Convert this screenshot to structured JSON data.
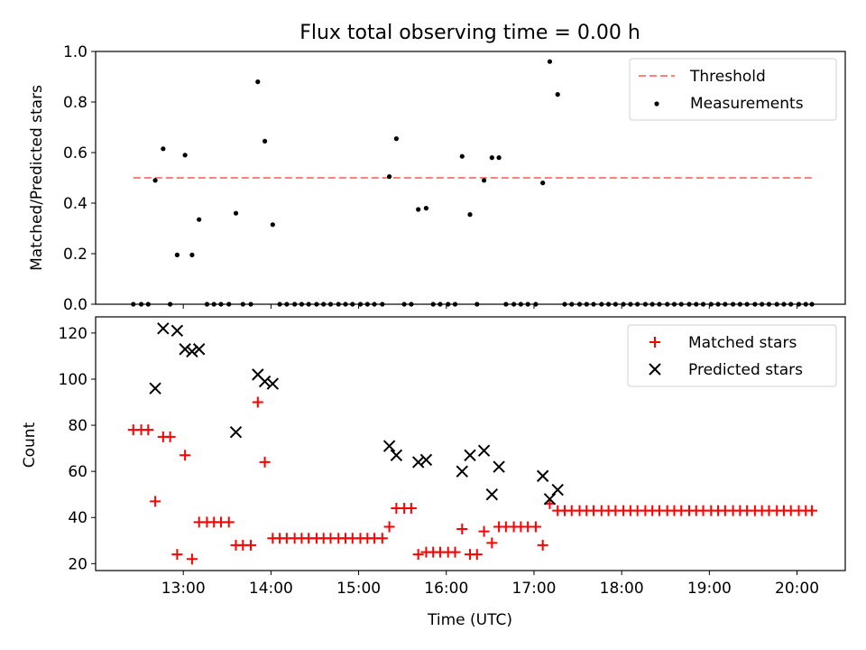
{
  "title": "Flux total observing time = 0.00 h",
  "chart_data": [
    {
      "type": "scatter",
      "ylabel": "Matched/Predicted stars",
      "ylim": [
        0,
        1.0
      ],
      "yticks": [
        "0.0",
        "0.2",
        "0.4",
        "0.6",
        "0.8",
        "1.0"
      ],
      "threshold": {
        "value": 0.5,
        "x": [
          12.43,
          20.17
        ],
        "name": "Threshold",
        "color": "#ff7f7f"
      },
      "legend": {
        "position": "upper right",
        "entries": [
          "Threshold",
          "Measurements"
        ]
      },
      "series": [
        {
          "name": "Measurements",
          "color": "#000000",
          "points": [
            [
              12.43,
              0.0
            ],
            [
              12.52,
              0.0
            ],
            [
              12.6,
              0.0
            ],
            [
              12.68,
              0.49
            ],
            [
              12.77,
              0.615
            ],
            [
              12.85,
              0.0
            ],
            [
              12.93,
              0.195
            ],
            [
              13.02,
              0.59
            ],
            [
              13.1,
              0.195
            ],
            [
              13.18,
              0.335
            ],
            [
              13.27,
              0.0
            ],
            [
              13.35,
              0.0
            ],
            [
              13.43,
              0.0
            ],
            [
              13.52,
              0.0
            ],
            [
              13.6,
              0.36
            ],
            [
              13.68,
              0.0
            ],
            [
              13.77,
              0.0
            ],
            [
              13.85,
              0.88
            ],
            [
              13.93,
              0.645
            ],
            [
              14.02,
              0.315
            ],
            [
              14.1,
              0.0
            ],
            [
              14.18,
              0.0
            ],
            [
              14.27,
              0.0
            ],
            [
              14.35,
              0.0
            ],
            [
              14.43,
              0.0
            ],
            [
              14.52,
              0.0
            ],
            [
              14.6,
              0.0
            ],
            [
              14.68,
              0.0
            ],
            [
              14.77,
              0.0
            ],
            [
              14.85,
              0.0
            ],
            [
              14.93,
              0.0
            ],
            [
              15.02,
              0.0
            ],
            [
              15.1,
              0.0
            ],
            [
              15.18,
              0.0
            ],
            [
              15.27,
              0.0
            ],
            [
              15.35,
              0.505
            ],
            [
              15.43,
              0.655
            ],
            [
              15.52,
              0.0
            ],
            [
              15.6,
              0.0
            ],
            [
              15.68,
              0.375
            ],
            [
              15.77,
              0.38
            ],
            [
              15.85,
              0.0
            ],
            [
              15.93,
              0.0
            ],
            [
              16.02,
              0.0
            ],
            [
              16.1,
              0.0
            ],
            [
              16.18,
              0.585
            ],
            [
              16.27,
              0.355
            ],
            [
              16.35,
              0.0
            ],
            [
              16.43,
              0.49
            ],
            [
              16.52,
              0.58
            ],
            [
              16.6,
              0.58
            ],
            [
              16.68,
              0.0
            ],
            [
              16.77,
              0.0
            ],
            [
              16.85,
              0.0
            ],
            [
              16.93,
              0.0
            ],
            [
              17.02,
              0.0
            ],
            [
              17.1,
              0.48
            ],
            [
              17.18,
              0.96
            ],
            [
              17.27,
              0.83
            ],
            [
              17.35,
              0.0
            ],
            [
              17.43,
              0.0
            ],
            [
              17.52,
              0.0
            ],
            [
              17.6,
              0.0
            ],
            [
              17.68,
              0.0
            ],
            [
              17.77,
              0.0
            ],
            [
              17.85,
              0.0
            ],
            [
              17.93,
              0.0
            ],
            [
              18.02,
              0.0
            ],
            [
              18.1,
              0.0
            ],
            [
              18.18,
              0.0
            ],
            [
              18.27,
              0.0
            ],
            [
              18.35,
              0.0
            ],
            [
              18.43,
              0.0
            ],
            [
              18.52,
              0.0
            ],
            [
              18.6,
              0.0
            ],
            [
              18.68,
              0.0
            ],
            [
              18.77,
              0.0
            ],
            [
              18.85,
              0.0
            ],
            [
              18.93,
              0.0
            ],
            [
              19.02,
              0.0
            ],
            [
              19.1,
              0.0
            ],
            [
              19.18,
              0.0
            ],
            [
              19.27,
              0.0
            ],
            [
              19.35,
              0.0
            ],
            [
              19.43,
              0.0
            ],
            [
              19.52,
              0.0
            ],
            [
              19.6,
              0.0
            ],
            [
              19.68,
              0.0
            ],
            [
              19.77,
              0.0
            ],
            [
              19.85,
              0.0
            ],
            [
              19.93,
              0.0
            ],
            [
              20.02,
              0.0
            ],
            [
              20.1,
              0.0
            ],
            [
              20.17,
              0.0
            ]
          ]
        }
      ]
    },
    {
      "type": "scatter",
      "xlabel": "Time (UTC)",
      "ylabel": "Count",
      "ylim": [
        17,
        127
      ],
      "yticks": [
        "20",
        "40",
        "60",
        "80",
        "100",
        "120"
      ],
      "xlim": [
        12.0,
        20.55
      ],
      "xticks": [
        "13:00",
        "14:00",
        "15:00",
        "16:00",
        "17:00",
        "18:00",
        "19:00",
        "20:00"
      ],
      "legend": {
        "position": "upper right",
        "entries": [
          "Matched stars",
          "Predicted stars"
        ]
      },
      "series": [
        {
          "name": "Matched stars",
          "marker": "+",
          "color": "#ff0000",
          "points": [
            [
              12.43,
              78
            ],
            [
              12.52,
              78
            ],
            [
              12.6,
              78
            ],
            [
              12.68,
              47
            ],
            [
              12.77,
              75
            ],
            [
              12.85,
              75
            ],
            [
              12.93,
              24
            ],
            [
              13.02,
              67
            ],
            [
              13.1,
              22
            ],
            [
              13.18,
              38
            ],
            [
              13.27,
              38
            ],
            [
              13.35,
              38
            ],
            [
              13.43,
              38
            ],
            [
              13.52,
              38
            ],
            [
              13.6,
              28
            ],
            [
              13.68,
              28
            ],
            [
              13.77,
              28
            ],
            [
              13.85,
              90
            ],
            [
              13.93,
              64
            ],
            [
              14.02,
              31
            ],
            [
              14.1,
              31
            ],
            [
              14.18,
              31
            ],
            [
              14.27,
              31
            ],
            [
              14.35,
              31
            ],
            [
              14.43,
              31
            ],
            [
              14.52,
              31
            ],
            [
              14.6,
              31
            ],
            [
              14.68,
              31
            ],
            [
              14.77,
              31
            ],
            [
              14.85,
              31
            ],
            [
              14.93,
              31
            ],
            [
              15.02,
              31
            ],
            [
              15.1,
              31
            ],
            [
              15.18,
              31
            ],
            [
              15.27,
              31
            ],
            [
              15.35,
              36
            ],
            [
              15.43,
              44
            ],
            [
              15.52,
              44
            ],
            [
              15.6,
              44
            ],
            [
              15.68,
              24
            ],
            [
              15.77,
              25
            ],
            [
              15.85,
              25
            ],
            [
              15.93,
              25
            ],
            [
              16.02,
              25
            ],
            [
              16.1,
              25
            ],
            [
              16.18,
              35
            ],
            [
              16.27,
              24
            ],
            [
              16.35,
              24
            ],
            [
              16.43,
              34
            ],
            [
              16.52,
              29
            ],
            [
              16.6,
              36
            ],
            [
              16.68,
              36
            ],
            [
              16.77,
              36
            ],
            [
              16.85,
              36
            ],
            [
              16.93,
              36
            ],
            [
              17.02,
              36
            ],
            [
              17.1,
              28
            ],
            [
              17.18,
              46
            ],
            [
              17.27,
              43
            ],
            [
              17.35,
              43
            ],
            [
              17.43,
              43
            ],
            [
              17.52,
              43
            ],
            [
              17.6,
              43
            ],
            [
              17.68,
              43
            ],
            [
              17.77,
              43
            ],
            [
              17.85,
              43
            ],
            [
              17.93,
              43
            ],
            [
              18.02,
              43
            ],
            [
              18.1,
              43
            ],
            [
              18.18,
              43
            ],
            [
              18.27,
              43
            ],
            [
              18.35,
              43
            ],
            [
              18.43,
              43
            ],
            [
              18.52,
              43
            ],
            [
              18.6,
              43
            ],
            [
              18.68,
              43
            ],
            [
              18.77,
              43
            ],
            [
              18.85,
              43
            ],
            [
              18.93,
              43
            ],
            [
              19.02,
              43
            ],
            [
              19.1,
              43
            ],
            [
              19.18,
              43
            ],
            [
              19.27,
              43
            ],
            [
              19.35,
              43
            ],
            [
              19.43,
              43
            ],
            [
              19.52,
              43
            ],
            [
              19.6,
              43
            ],
            [
              19.68,
              43
            ],
            [
              19.77,
              43
            ],
            [
              19.85,
              43
            ],
            [
              19.93,
              43
            ],
            [
              20.02,
              43
            ],
            [
              20.1,
              43
            ],
            [
              20.17,
              43
            ]
          ]
        },
        {
          "name": "Predicted stars",
          "marker": "x",
          "color": "#000000",
          "points": [
            [
              12.68,
              96
            ],
            [
              12.77,
              122
            ],
            [
              12.93,
              121
            ],
            [
              13.02,
              113
            ],
            [
              13.1,
              112
            ],
            [
              13.18,
              113
            ],
            [
              13.6,
              77
            ],
            [
              13.85,
              102
            ],
            [
              13.93,
              99
            ],
            [
              14.02,
              98
            ],
            [
              15.35,
              71
            ],
            [
              15.43,
              67
            ],
            [
              15.68,
              64
            ],
            [
              15.77,
              65
            ],
            [
              16.18,
              60
            ],
            [
              16.27,
              67
            ],
            [
              16.43,
              69
            ],
            [
              16.52,
              50
            ],
            [
              16.6,
              62
            ],
            [
              17.1,
              58
            ],
            [
              17.18,
              48
            ],
            [
              17.27,
              52
            ]
          ]
        }
      ]
    }
  ]
}
